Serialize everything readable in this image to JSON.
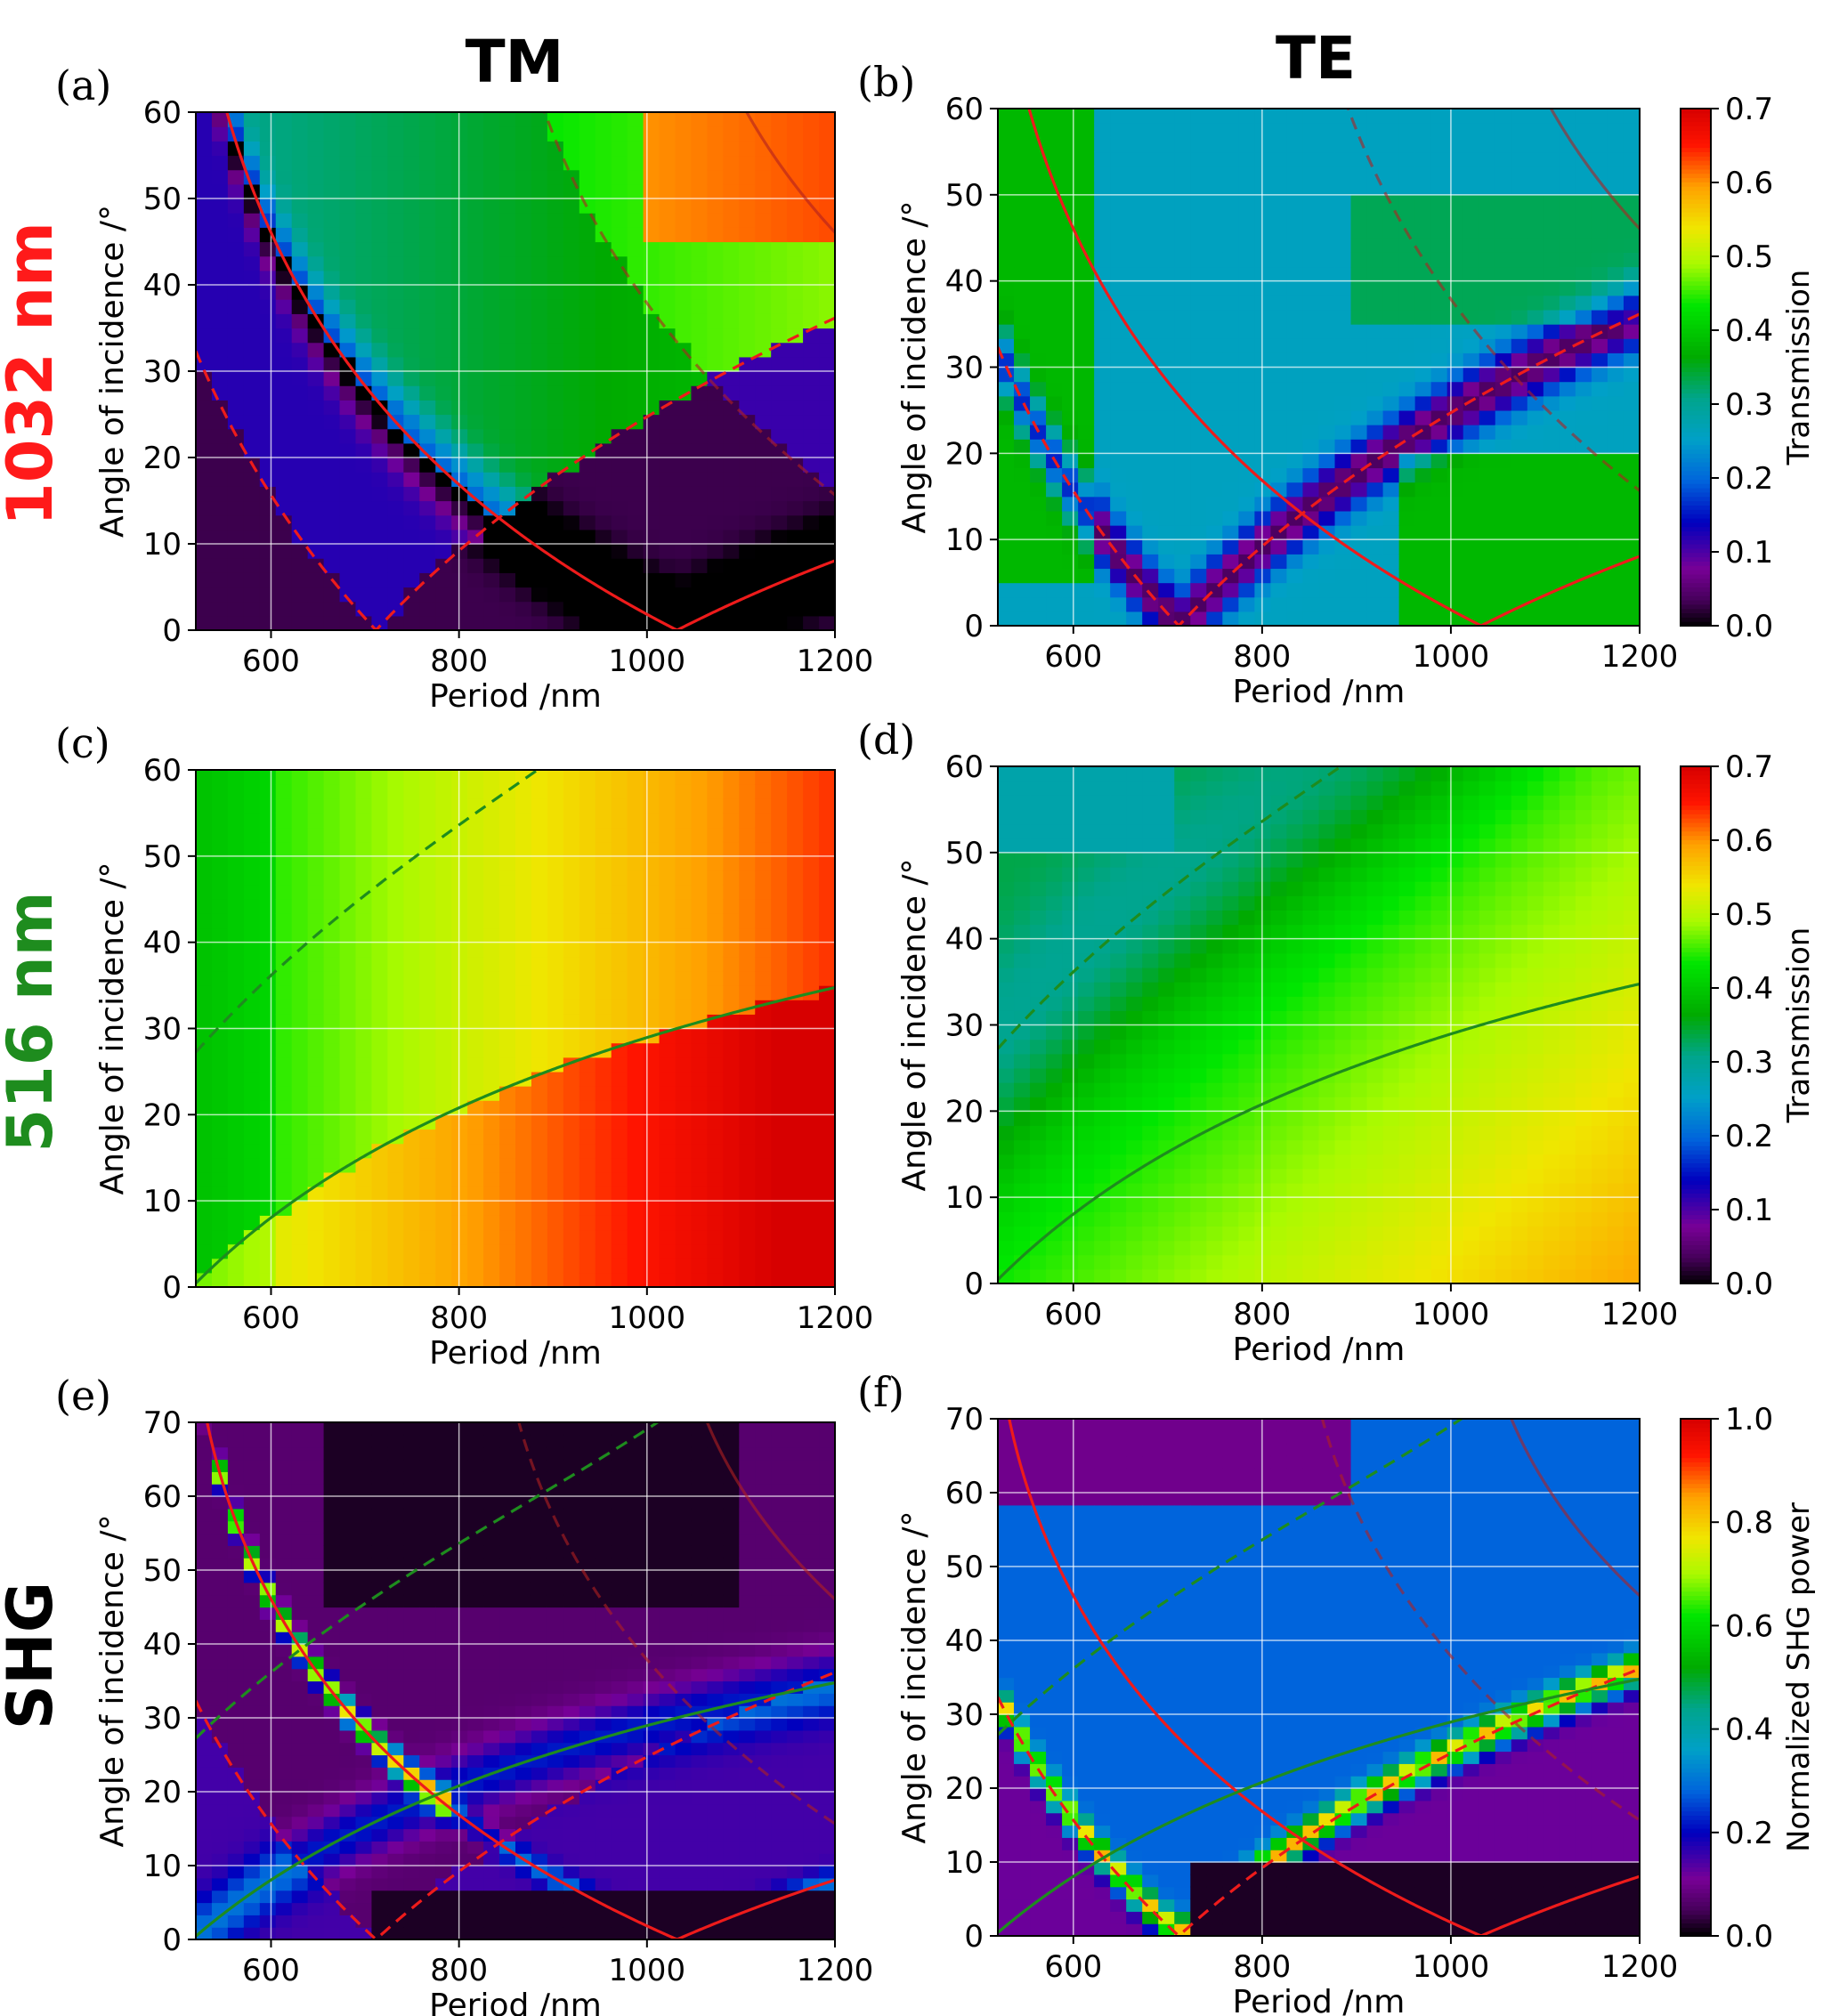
{
  "figure": {
    "column_labels": [
      "TM",
      "TE"
    ],
    "row_labels": [
      {
        "text": "1032 nm",
        "color": "#ff1a1a"
      },
      {
        "text": "516 nm",
        "color": "#1e8c1e"
      },
      {
        "text": "SHG",
        "color": "#000000"
      }
    ]
  },
  "colorbars": [
    {
      "label": "Transmission",
      "ticks": [
        "0.0",
        "0.1",
        "0.2",
        "0.3",
        "0.4",
        "0.5",
        "0.6",
        "0.7"
      ],
      "min": 0,
      "max": 0.7
    },
    {
      "label": "Transmission",
      "ticks": [
        "0.0",
        "0.1",
        "0.2",
        "0.3",
        "0.4",
        "0.5",
        "0.6",
        "0.7"
      ],
      "min": 0,
      "max": 0.7
    },
    {
      "label": "Normalized SHG power",
      "ticks": [
        "0.0",
        "0.2",
        "0.4",
        "0.6",
        "0.8",
        "1.0"
      ],
      "min": 0,
      "max": 1.0
    }
  ],
  "chart_data": [
    {
      "panel": "(a)",
      "type": "heatmap",
      "title": "TM 1032 nm",
      "xlabel": "Period /nm",
      "ylabel": "Angle of incidence /°",
      "xlim": [
        520,
        1200
      ],
      "ylim": [
        0,
        60
      ],
      "xticks": [
        "600",
        "800",
        "1000",
        "1200"
      ],
      "yticks": [
        "0",
        "10",
        "20",
        "30",
        "40",
        "50",
        "60"
      ],
      "zlabel": "Transmission",
      "zlim": [
        0,
        0.7
      ],
      "description_curves": [
        "red solid: 1032 nm order -1 / +1",
        "red dashed: 1032 nm other interface"
      ],
      "crossings_deg": {
        "solid_zero_period": 1032,
        "dashed_zero_period": 712
      },
      "color_map": "nipy_spectral"
    },
    {
      "panel": "(b)",
      "type": "heatmap",
      "title": "TE 1032 nm",
      "xlabel": "Period /nm",
      "ylabel": "Angle of incidence /°",
      "xlim": [
        520,
        1200
      ],
      "ylim": [
        0,
        60
      ],
      "xticks": [
        "600",
        "800",
        "1000",
        "1200"
      ],
      "yticks": [
        "0",
        "10",
        "20",
        "30",
        "40",
        "50",
        "60"
      ],
      "zlabel": "Transmission",
      "zlim": [
        0,
        0.7
      ],
      "crossings_deg": {
        "solid_zero_period": 1032,
        "dashed_zero_period": 712
      },
      "color_map": "nipy_spectral"
    },
    {
      "panel": "(c)",
      "type": "heatmap",
      "title": "TM 516 nm",
      "xlabel": "Period /nm",
      "ylabel": "Angle of incidence /°",
      "xlim": [
        520,
        1200
      ],
      "ylim": [
        0,
        60
      ],
      "xticks": [
        "600",
        "800",
        "1000",
        "1200"
      ],
      "yticks": [
        "0",
        "10",
        "20",
        "30",
        "40",
        "50",
        "60"
      ],
      "zlabel": "Transmission",
      "zlim": [
        0,
        0.7
      ],
      "curve_samples": {
        "green_solid": [
          [
            520,
            0
          ],
          [
            600,
            8.3
          ],
          [
            800,
            20.9
          ],
          [
            1000,
            29.1
          ],
          [
            1200,
            34.6
          ]
        ],
        "green_dashed": [
          [
            520,
            27.6
          ],
          [
            700,
            50
          ],
          [
            780,
            60
          ]
        ]
      },
      "color_map": "nipy_spectral"
    },
    {
      "panel": "(d)",
      "type": "heatmap",
      "title": "TE 516 nm",
      "xlabel": "Period /nm",
      "ylabel": "Angle of incidence /°",
      "xlim": [
        520,
        1200
      ],
      "ylim": [
        0,
        60
      ],
      "xticks": [
        "600",
        "800",
        "1000",
        "1200"
      ],
      "yticks": [
        "0",
        "10",
        "20",
        "30",
        "40",
        "50",
        "60"
      ],
      "zlabel": "Transmission",
      "zlim": [
        0,
        0.7
      ],
      "color_map": "nipy_spectral"
    },
    {
      "panel": "(e)",
      "type": "heatmap",
      "title": "TM SHG",
      "xlabel": "Period /nm",
      "ylabel": "Angle of incidence /°",
      "xlim": [
        520,
        1200
      ],
      "ylim": [
        0,
        70
      ],
      "xticks": [
        "600",
        "800",
        "1000",
        "1200"
      ],
      "yticks": [
        "0",
        "10",
        "20",
        "30",
        "40",
        "50",
        "60",
        "70"
      ],
      "zlabel": "Normalized SHG power",
      "zlim": [
        0,
        1.0
      ],
      "color_map": "nipy_spectral"
    },
    {
      "panel": "(f)",
      "type": "heatmap",
      "title": "TE SHG",
      "xlabel": "Period /nm",
      "ylabel": "Angle of incidence /°",
      "xlim": [
        520,
        1200
      ],
      "ylim": [
        0,
        70
      ],
      "xticks": [
        "600",
        "800",
        "1000",
        "1200"
      ],
      "yticks": [
        "0",
        "10",
        "20",
        "30",
        "40",
        "50",
        "60",
        "70"
      ],
      "zlabel": "Normalized SHG power",
      "zlim": [
        0,
        1.0
      ],
      "color_map": "nipy_spectral"
    }
  ]
}
